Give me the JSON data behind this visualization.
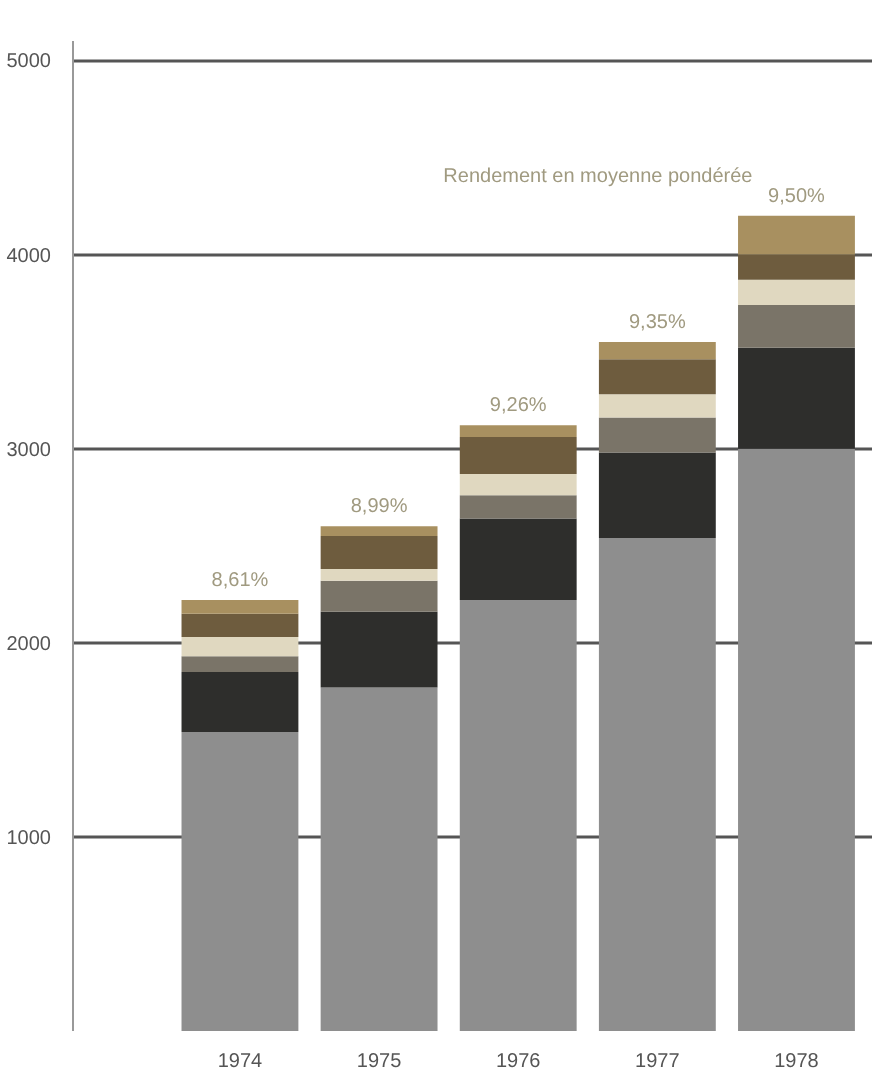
{
  "chart_data": {
    "type": "bar",
    "stacked": true,
    "categories": [
      "1974",
      "1975",
      "1976",
      "1977",
      "1978"
    ],
    "series": [
      {
        "color": "#8e8e8e",
        "values": [
          1540,
          1770,
          2220,
          2540,
          3000
        ]
      },
      {
        "color": "#2e2e2c",
        "values": [
          310,
          390,
          420,
          440,
          520
        ]
      },
      {
        "color": "#7a7468",
        "values": [
          80,
          160,
          120,
          180,
          220
        ]
      },
      {
        "color": "#e0d8c0",
        "values": [
          100,
          60,
          110,
          120,
          130
        ]
      },
      {
        "color": "#6e5c3e",
        "values": [
          120,
          170,
          190,
          180,
          130
        ]
      },
      {
        "color": "#a89060",
        "values": [
          70,
          50,
          60,
          90,
          200
        ]
      }
    ],
    "ylim": [
      0,
      5100
    ],
    "yticks": [
      1000,
      2000,
      3000,
      4000,
      5000
    ],
    "grid": "y",
    "annotations": [
      "Rendement en moyenne pondérée",
      {
        "text": "8,61%",
        "x": "1974",
        "y": 2220
      },
      {
        "text": "8,99%",
        "x": "1975",
        "y": 2600
      },
      {
        "text": "9,26%",
        "x": "1976",
        "y": 3120
      },
      {
        "text": "9,35%",
        "x": "1977",
        "y": 3550
      },
      {
        "text": "9,50%",
        "x": "1978",
        "y": 4200
      }
    ]
  }
}
